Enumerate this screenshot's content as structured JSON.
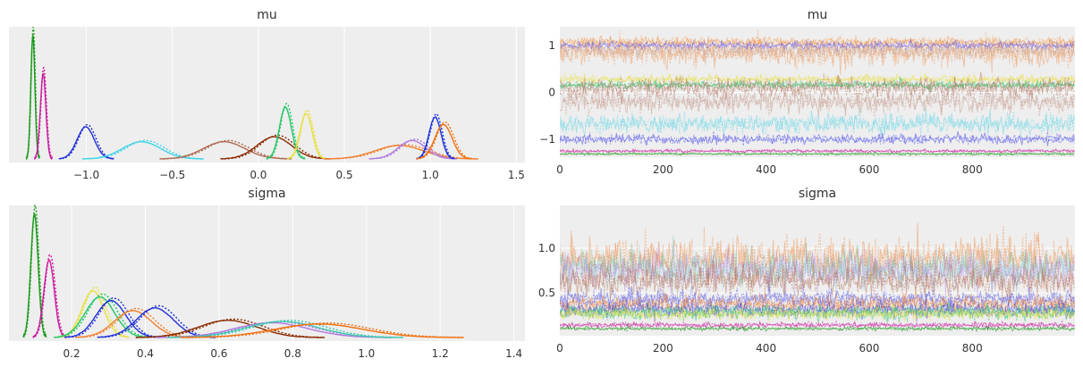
{
  "chart_data": [
    {
      "type": "line",
      "subtype": "kde",
      "title": "mu",
      "xlim": [
        -1.45,
        1.55
      ],
      "xticks": [
        "−1.0",
        "−0.5",
        "0.0",
        "0.5",
        "1.0",
        "1.5"
      ],
      "xtick_values": [
        -1.0,
        -0.5,
        0.0,
        0.5,
        1.0,
        1.5
      ],
      "yticks": [],
      "grid": true,
      "series": [
        {
          "color": "#1a9a1a",
          "mean": -1.31,
          "sd": 0.012,
          "height": 1.0
        },
        {
          "color": "#cc1aa0",
          "mean": -1.25,
          "sd": 0.016,
          "height": 0.69
        },
        {
          "color": "#2030d8",
          "mean": -1.0,
          "sd": 0.05,
          "height": 0.26
        },
        {
          "color": "#40d4e8",
          "mean": -0.67,
          "sd": 0.11,
          "height": 0.14
        },
        {
          "color": "#b06a50",
          "mean": -0.19,
          "sd": 0.12,
          "height": 0.14
        },
        {
          "color": "#8a2a00",
          "mean": 0.1,
          "sd": 0.1,
          "height": 0.18
        },
        {
          "color": "#22c766",
          "mean": 0.16,
          "sd": 0.035,
          "height": 0.42
        },
        {
          "color": "#e8e03a",
          "mean": 0.28,
          "sd": 0.035,
          "height": 0.37
        },
        {
          "color": "#f08030",
          "mean": 0.83,
          "sd": 0.14,
          "height": 0.11
        },
        {
          "color": "#b07ae0",
          "mean": 0.9,
          "sd": 0.08,
          "height": 0.15
        },
        {
          "color": "#1830e0",
          "mean": 1.03,
          "sd": 0.035,
          "height": 0.34
        },
        {
          "color": "#f07010",
          "mean": 1.08,
          "sd": 0.05,
          "height": 0.28
        }
      ]
    },
    {
      "type": "line",
      "subtype": "trace",
      "title": "mu",
      "xlim": [
        0,
        999
      ],
      "ylim": [
        -1.38,
        1.4
      ],
      "xticks": [
        "0",
        "200",
        "400",
        "600",
        "800"
      ],
      "xtick_values": [
        0,
        200,
        400,
        600,
        800
      ],
      "yticks": [
        "−1",
        "0",
        "1"
      ],
      "ytick_values": [
        -1,
        0,
        1
      ],
      "grid": true,
      "series": [
        {
          "color": "#f39a50",
          "level": 1.07,
          "noise": 0.05,
          "opacity": 0.55
        },
        {
          "color": "#f08030",
          "level": 0.85,
          "noise": 0.14,
          "opacity": 0.35
        },
        {
          "color": "#6a5ae6",
          "level": 1.0,
          "noise": 0.04,
          "opacity": 0.55
        },
        {
          "color": "#c9a090",
          "level": 0.9,
          "noise": 0.08,
          "opacity": 0.45
        },
        {
          "color": "#e8e03a",
          "level": 0.28,
          "noise": 0.04,
          "opacity": 0.55
        },
        {
          "color": "#22c766",
          "level": 0.16,
          "noise": 0.04,
          "opacity": 0.55
        },
        {
          "color": "#b06a50",
          "level": 0.1,
          "noise": 0.1,
          "opacity": 0.45
        },
        {
          "color": "#c09080",
          "level": -0.19,
          "noise": 0.12,
          "opacity": 0.45
        },
        {
          "color": "#70d8e8",
          "level": -0.67,
          "noise": 0.1,
          "opacity": 0.55
        },
        {
          "color": "#5a5ae8",
          "level": -1.0,
          "noise": 0.05,
          "opacity": 0.6
        },
        {
          "color": "#cc1aa0",
          "level": -1.25,
          "noise": 0.015,
          "opacity": 0.6
        },
        {
          "color": "#1a9a1a",
          "level": -1.31,
          "noise": 0.012,
          "opacity": 0.6
        }
      ]
    },
    {
      "type": "line",
      "subtype": "kde",
      "title": "sigma",
      "xlim": [
        0.03,
        1.43
      ],
      "xticks": [
        "0.2",
        "0.4",
        "0.6",
        "0.8",
        "1.0",
        "1.2",
        "1.4"
      ],
      "xtick_values": [
        0.2,
        0.4,
        0.6,
        0.8,
        1.0,
        1.2,
        1.4
      ],
      "yticks": [],
      "grid": true,
      "series": [
        {
          "color": "#1a9a1a",
          "mean": 0.1,
          "sd": 0.01,
          "height": 1.0
        },
        {
          "color": "#cc1aa0",
          "mean": 0.14,
          "sd": 0.014,
          "height": 0.63
        },
        {
          "color": "#e8e03a",
          "mean": 0.26,
          "sd": 0.03,
          "height": 0.38
        },
        {
          "color": "#22c766",
          "mean": 0.28,
          "sd": 0.04,
          "height": 0.33
        },
        {
          "color": "#2030d8",
          "mean": 0.31,
          "sd": 0.04,
          "height": 0.3
        },
        {
          "color": "#f08030",
          "mean": 0.37,
          "sd": 0.05,
          "height": 0.22
        },
        {
          "color": "#2030d8",
          "mean": 0.43,
          "sd": 0.05,
          "height": 0.24
        },
        {
          "color": "#8a2a00",
          "mean": 0.63,
          "sd": 0.08,
          "height": 0.14
        },
        {
          "color": "#b07ae0",
          "mean": 0.75,
          "sd": 0.1,
          "height": 0.12
        },
        {
          "color": "#40c8b0",
          "mean": 0.78,
          "sd": 0.1,
          "height": 0.13
        },
        {
          "color": "#f07010",
          "mean": 0.88,
          "sd": 0.12,
          "height": 0.11
        }
      ]
    },
    {
      "type": "line",
      "subtype": "trace",
      "title": "sigma",
      "xlim": [
        0,
        999
      ],
      "ylim": [
        0.02,
        1.48
      ],
      "xticks": [
        "0",
        "200",
        "400",
        "600",
        "800"
      ],
      "xtick_values": [
        0,
        200,
        400,
        600,
        800
      ],
      "yticks": [
        "0.5",
        "1.0"
      ],
      "ytick_values": [
        0.5,
        1.0
      ],
      "grid": true,
      "series": [
        {
          "color": "#f08030",
          "level": 0.88,
          "noise": 0.12,
          "opacity": 0.4
        },
        {
          "color": "#40c8b0",
          "level": 0.78,
          "noise": 0.1,
          "opacity": 0.3
        },
        {
          "color": "#b07ae0",
          "level": 0.75,
          "noise": 0.1,
          "opacity": 0.35
        },
        {
          "color": "#b06a50",
          "level": 0.63,
          "noise": 0.08,
          "opacity": 0.45
        },
        {
          "color": "#5a5ae8",
          "level": 0.43,
          "noise": 0.05,
          "opacity": 0.5
        },
        {
          "color": "#f08030",
          "level": 0.37,
          "noise": 0.05,
          "opacity": 0.5
        },
        {
          "color": "#4a4ae0",
          "level": 0.31,
          "noise": 0.04,
          "opacity": 0.55
        },
        {
          "color": "#22c766",
          "level": 0.28,
          "noise": 0.04,
          "opacity": 0.5
        },
        {
          "color": "#e8e03a",
          "level": 0.26,
          "noise": 0.03,
          "opacity": 0.5
        },
        {
          "color": "#cc1aa0",
          "level": 0.14,
          "noise": 0.014,
          "opacity": 0.6
        },
        {
          "color": "#1a9a1a",
          "level": 0.1,
          "noise": 0.01,
          "opacity": 0.6
        }
      ]
    }
  ]
}
